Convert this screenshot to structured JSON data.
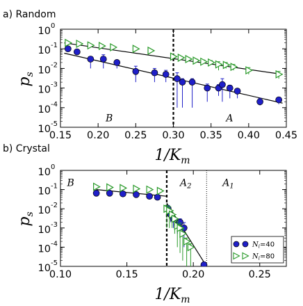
{
  "chart_data": [
    {
      "type": "scatter",
      "panel_label": "a)  Random",
      "xlabel_main": "1/K",
      "xlabel_sub": "m",
      "ylabel_main": "p",
      "ylabel_sub": "s",
      "xlim": [
        0.15,
        0.45
      ],
      "ylim_log10": [
        -5,
        0
      ],
      "yscale": "log",
      "x_ticks": [
        0.15,
        0.2,
        0.25,
        0.3,
        0.35,
        0.4,
        0.45
      ],
      "x_tick_labels": [
        "0.15",
        "0.20",
        "0.25",
        "0.30",
        "0.35",
        "0.40",
        "0.45"
      ],
      "y_tick_exponents": [
        0,
        -1,
        -2,
        -3,
        -4,
        -5
      ],
      "y_tick_base": "10",
      "y_tick_labels": [
        "0",
        "-1",
        "-2",
        "-3",
        "-4",
        "-5"
      ],
      "vlines": [
        {
          "x": 0.3,
          "style": "dashed"
        }
      ],
      "region_labels": [
        {
          "text": "B",
          "sub": "",
          "x": 0.21,
          "y": 2e-05
        },
        {
          "text": "A",
          "sub": "",
          "x": 0.37,
          "y": 2e-05
        }
      ],
      "series": [
        {
          "name": "N_i=40",
          "marker": "circle",
          "color": "#1f1fc8",
          "x": [
            0.16,
            0.172,
            0.19,
            0.207,
            0.225,
            0.25,
            0.275,
            0.29,
            0.305,
            0.312,
            0.325,
            0.345,
            0.36,
            0.365,
            0.375,
            0.385,
            0.415,
            0.44
          ],
          "y": [
            0.1,
            0.07,
            0.03,
            0.03,
            0.02,
            0.007,
            0.006,
            0.005,
            0.003,
            0.002,
            0.002,
            0.001,
            0.001,
            0.0015,
            0.001,
            0.0007,
            0.0002,
            0.00025
          ],
          "err_low": [
            0.03,
            0.02,
            0.02,
            0.02,
            0.01,
            0.005,
            0.004,
            0.003,
            0.0029,
            0.0019,
            0.0019,
            0.0008,
            0.0006,
            0.0013,
            0.0007,
            0.0004,
            7e-05,
            0.0001
          ],
          "err_high": [
            0.03,
            0.02,
            0.01,
            0.02,
            0.005,
            0.006,
            0.004,
            0.003,
            0.003,
            0.001,
            0.001,
            0.0006,
            0.0005,
            0.0015,
            0.0004,
            0.0002,
            0.0001,
            8e-05
          ]
        },
        {
          "name": "N_i=80",
          "marker": "triangle-right",
          "color": "#2a9a2a",
          "x": [
            0.16,
            0.175,
            0.19,
            0.205,
            0.22,
            0.25,
            0.27,
            0.3,
            0.31,
            0.32,
            0.33,
            0.34,
            0.35,
            0.36,
            0.37,
            0.38,
            0.4,
            0.44
          ],
          "y": [
            0.2,
            0.18,
            0.15,
            0.14,
            0.12,
            0.1,
            0.08,
            0.04,
            0.035,
            0.03,
            0.025,
            0.022,
            0.02,
            0.016,
            0.015,
            0.012,
            0.008,
            0.005
          ],
          "err_low": [
            0.02,
            0.02,
            0.02,
            0.02,
            0.02,
            0.01,
            0.01,
            0.005,
            0.005,
            0.005,
            0.005,
            0.005,
            0.005,
            0.008,
            0.005,
            0.004,
            0.003,
            0.002
          ],
          "err_high": [
            0.02,
            0.02,
            0.02,
            0.02,
            0.02,
            0.01,
            0.01,
            0.005,
            0.005,
            0.005,
            0.005,
            0.005,
            0.005,
            0.006,
            0.005,
            0.004,
            0.003,
            0.002
          ]
        }
      ],
      "fit_lines": [
        {
          "x": [
            0.155,
            0.445
          ],
          "y": [
            0.2,
            0.005
          ]
        },
        {
          "x": [
            0.155,
            0.445
          ],
          "y": [
            0.06,
            0.00017
          ]
        }
      ]
    },
    {
      "type": "scatter",
      "panel_label": "b)  Crystal",
      "xlabel_main": "1/K",
      "xlabel_sub": "m",
      "ylabel_main": "p",
      "ylabel_sub": "s",
      "xlim": [
        0.1,
        0.27
      ],
      "ylim_log10": [
        -5,
        0
      ],
      "yscale": "log",
      "x_ticks": [
        0.1,
        0.15,
        0.2,
        0.25
      ],
      "x_tick_labels": [
        "0.10",
        "0.15",
        "0.20",
        "0.25"
      ],
      "y_tick_exponents": [
        0,
        -1,
        -2,
        -3,
        -4,
        -5
      ],
      "y_tick_base": "10",
      "y_tick_labels": [
        "0",
        "-1",
        "-2",
        "-3",
        "-4",
        "-5"
      ],
      "vlines": [
        {
          "x": 0.18,
          "style": "dashed"
        },
        {
          "x": 0.21,
          "style": "dotted"
        }
      ],
      "region_labels": [
        {
          "text": "B",
          "sub": "",
          "x": 0.105,
          "y": 0.15
        },
        {
          "text": "A",
          "sub": "2",
          "x": 0.19,
          "y": 0.15
        },
        {
          "text": "A",
          "sub": "1",
          "x": 0.222,
          "y": 0.15
        }
      ],
      "series": [
        {
          "name": "N_i=40",
          "marker": "circle",
          "color": "#1f1fc8",
          "x": [
            0.127,
            0.137,
            0.147,
            0.157,
            0.167,
            0.173,
            0.181,
            0.183,
            0.185,
            0.188,
            0.19,
            0.193,
            0.208
          ],
          "y": [
            0.065,
            0.065,
            0.06,
            0.055,
            0.045,
            0.04,
            0.01,
            0.005,
            0.003,
            0.0015,
            0.002,
            0.001,
            1.2e-05
          ],
          "err_low": [
            0.01,
            0.01,
            0.01,
            0.01,
            0.01,
            0.01,
            0.005,
            0.003,
            0.002,
            0.001,
            0.001,
            0.0009,
            5e-06
          ],
          "err_high": [
            0.01,
            0.01,
            0.01,
            0.01,
            0.01,
            0.01,
            0.005,
            0.003,
            0.002,
            0.001,
            0.001,
            0.0009,
            5e-06
          ]
        },
        {
          "name": "N_i=80",
          "marker": "triangle-right",
          "color": "#2a9a2a",
          "x": [
            0.127,
            0.137,
            0.147,
            0.157,
            0.167,
            0.175,
            0.18,
            0.182,
            0.184,
            0.186,
            0.188,
            0.19,
            0.192,
            0.195,
            0.198
          ],
          "y": [
            0.14,
            0.13,
            0.12,
            0.11,
            0.1,
            0.085,
            0.01,
            0.008,
            0.005,
            0.003,
            0.0013,
            0.001,
            0.0005,
            0.0002,
            0.0001
          ],
          "err_low": [
            0.02,
            0.02,
            0.02,
            0.02,
            0.02,
            0.02,
            0.009,
            0.007,
            0.004,
            0.0025,
            0.0012,
            0.00095,
            0.00048,
            0.00019,
            9.7e-05
          ],
          "err_high": [
            0.02,
            0.02,
            0.02,
            0.02,
            0.02,
            0.02,
            0.005,
            0.005,
            0.003,
            0.002,
            0.001,
            0.0008,
            0.0004,
            0.0001,
            5e-05
          ]
        }
      ],
      "fit_lines": [
        {
          "x": [
            0.127,
            0.18
          ],
          "y": [
            0.1,
            0.045
          ]
        },
        {
          "x": [
            0.18,
            0.21
          ],
          "y": [
            0.02,
            1e-05
          ]
        }
      ],
      "legend": {
        "placement": "lower-right",
        "entries": [
          {
            "label_main": "N",
            "label_sub": "i",
            "label_rest": "=40",
            "marker": "circle",
            "color": "#1f1fc8"
          },
          {
            "label_main": "N",
            "label_sub": "i",
            "label_rest": "=80",
            "marker": "triangle-right",
            "color": "#2a9a2a"
          }
        ]
      }
    }
  ]
}
